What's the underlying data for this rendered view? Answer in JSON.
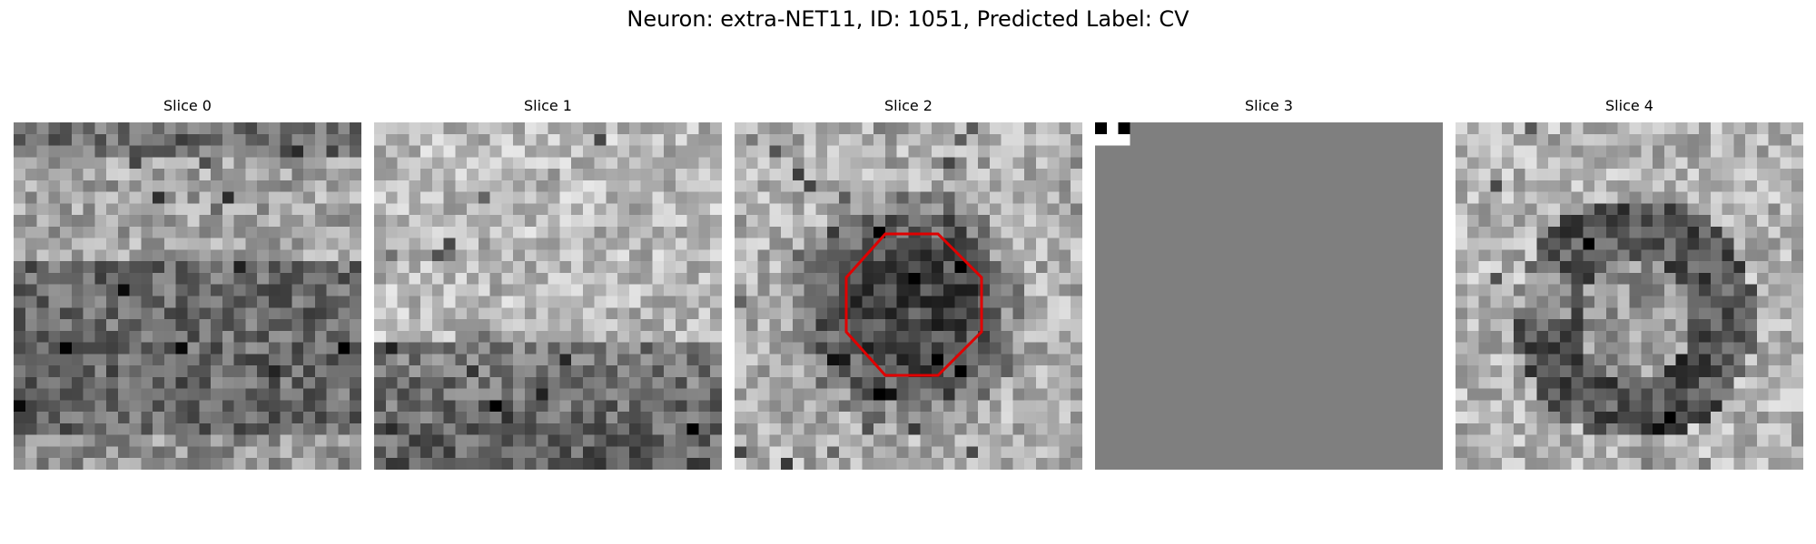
{
  "figure": {
    "title": "Neuron: extra-NET11, ID: 1051, Predicted Label: CV"
  },
  "slices": [
    {
      "title": "Slice 0",
      "pattern": "noise-dark-band",
      "has_roi": false
    },
    {
      "title": "Slice 1",
      "pattern": "noise-light",
      "has_roi": false
    },
    {
      "title": "Slice 2",
      "pattern": "noise-dark-blob",
      "has_roi": true
    },
    {
      "title": "Slice 3",
      "pattern": "flat-gray",
      "has_roi": false
    },
    {
      "title": "Slice 4",
      "pattern": "noise-dark-ring",
      "has_roi": false
    }
  ],
  "colors": {
    "roi_outline": "#e00000",
    "flat_gray": "#7f7f7f"
  },
  "colormap": "grayscale"
}
